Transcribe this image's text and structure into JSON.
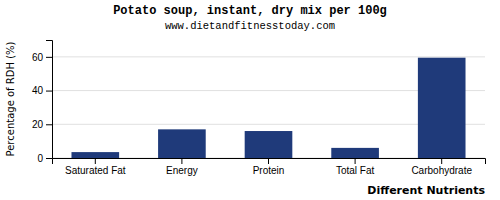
{
  "chart_data": {
    "type": "bar",
    "title": "Potato soup, instant, dry mix per 100g",
    "subtitle": "www.dietandfitnesstoday.com",
    "xlabel": "Different Nutrients",
    "ylabel": "Percentage of RDH (%)",
    "categories": [
      "Saturated Fat",
      "Energy",
      "Protein",
      "Total Fat",
      "Carbohydrate"
    ],
    "values": [
      3.5,
      17,
      16,
      6,
      59.5
    ],
    "color": "#1f3a7a",
    "ylim": [
      0,
      70
    ],
    "yticks": [
      0,
      20,
      40,
      60
    ],
    "grid": true
  }
}
